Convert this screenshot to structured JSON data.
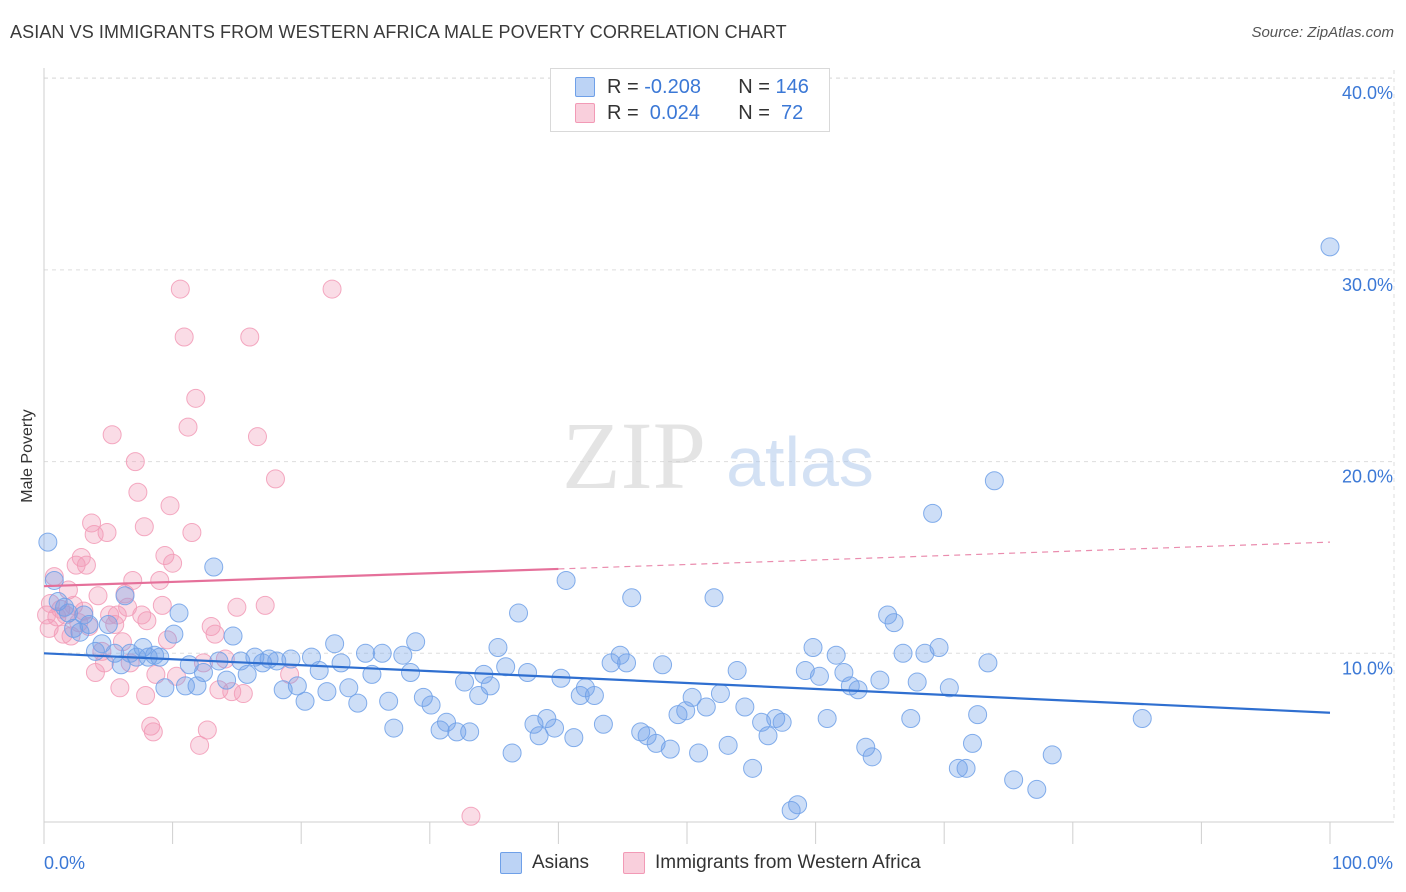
{
  "title": "ASIAN VS IMMIGRANTS FROM WESTERN AFRICA MALE POVERTY CORRELATION CHART",
  "source": "Source: ZipAtlas.com",
  "watermark": {
    "zip": "ZIP",
    "atlas": "atlas"
  },
  "legend": {
    "rows": [
      {
        "r_label": "R = ",
        "r_value": "-0.208",
        "n_label": "N = ",
        "n_value": "146"
      },
      {
        "r_label": "R = ",
        "r_value": " 0.024",
        "n_label": "N = ",
        "n_value": " 72"
      }
    ]
  },
  "colors": {
    "asians": "#6fa0e8",
    "asians_line": "#2f6fd0",
    "immigrants": "#f29ab6",
    "immigrants_line": "#e5709a",
    "tick_label": "#3b78d6",
    "grid": "#dddddd"
  },
  "chart_data": {
    "type": "scatter",
    "title": "ASIAN VS IMMIGRANTS FROM WESTERN AFRICA MALE POVERTY CORRELATION CHART",
    "xlabel": "",
    "ylabel": "Male Poverty",
    "xlim": [
      0,
      100
    ],
    "ylim": [
      0,
      42
    ],
    "x_tick_labels": [
      "0.0%",
      "100.0%"
    ],
    "y_ticks": [
      10,
      20,
      30,
      40
    ],
    "y_tick_labels": [
      "10.0%",
      "20.0%",
      "30.0%",
      "40.0%"
    ],
    "grid": true,
    "legend_position": "bottom",
    "series": [
      {
        "name": "Asians",
        "color": "#6fa0e8",
        "trend": {
          "x": [
            0,
            100
          ],
          "y": [
            10.0,
            6.9
          ]
        },
        "points": [
          [
            0.3,
            15.8
          ],
          [
            0.8,
            13.8
          ],
          [
            1.1,
            12.7
          ],
          [
            1.6,
            12.4
          ],
          [
            1.9,
            12.1
          ],
          [
            2.3,
            11.3
          ],
          [
            2.8,
            11.1
          ],
          [
            3.1,
            12.0
          ],
          [
            3.5,
            11.5
          ],
          [
            4.0,
            10.1
          ],
          [
            4.5,
            10.5
          ],
          [
            5.0,
            11.5
          ],
          [
            5.5,
            10.0
          ],
          [
            6.0,
            9.4
          ],
          [
            6.3,
            13.0
          ],
          [
            6.7,
            10.0
          ],
          [
            7.2,
            9.8
          ],
          [
            7.7,
            10.3
          ],
          [
            8.1,
            9.8
          ],
          [
            8.6,
            9.9
          ],
          [
            9.0,
            9.8
          ],
          [
            9.4,
            8.2
          ],
          [
            10.1,
            11.0
          ],
          [
            10.5,
            12.1
          ],
          [
            11.0,
            8.3
          ],
          [
            11.3,
            9.4
          ],
          [
            11.9,
            8.3
          ],
          [
            12.4,
            9.0
          ],
          [
            13.2,
            14.5
          ],
          [
            13.6,
            9.6
          ],
          [
            14.2,
            8.6
          ],
          [
            14.7,
            10.9
          ],
          [
            15.3,
            9.6
          ],
          [
            15.8,
            8.9
          ],
          [
            16.4,
            9.8
          ],
          [
            17.0,
            9.5
          ],
          [
            17.5,
            9.7
          ],
          [
            18.1,
            9.6
          ],
          [
            18.6,
            8.1
          ],
          [
            19.2,
            9.7
          ],
          [
            19.7,
            8.3
          ],
          [
            20.3,
            7.5
          ],
          [
            20.8,
            9.8
          ],
          [
            21.4,
            9.1
          ],
          [
            22.0,
            8.0
          ],
          [
            22.6,
            10.5
          ],
          [
            23.1,
            9.5
          ],
          [
            23.7,
            8.2
          ],
          [
            24.4,
            7.4
          ],
          [
            25.0,
            10.0
          ],
          [
            25.5,
            8.9
          ],
          [
            26.3,
            10.0
          ],
          [
            26.8,
            7.5
          ],
          [
            27.2,
            6.1
          ],
          [
            27.9,
            9.9
          ],
          [
            28.5,
            9.0
          ],
          [
            28.9,
            10.6
          ],
          [
            29.5,
            7.7
          ],
          [
            30.1,
            7.3
          ],
          [
            30.8,
            6.0
          ],
          [
            31.3,
            6.4
          ],
          [
            32.1,
            5.9
          ],
          [
            32.7,
            8.5
          ],
          [
            33.1,
            5.9
          ],
          [
            33.8,
            7.8
          ],
          [
            34.2,
            8.9
          ],
          [
            34.7,
            8.3
          ],
          [
            35.3,
            10.3
          ],
          [
            35.9,
            9.3
          ],
          [
            36.4,
            4.8
          ],
          [
            36.9,
            12.1
          ],
          [
            37.6,
            9.0
          ],
          [
            38.1,
            6.3
          ],
          [
            38.5,
            5.7
          ],
          [
            39.1,
            6.6
          ],
          [
            39.7,
            6.1
          ],
          [
            40.2,
            8.7
          ],
          [
            40.6,
            13.8
          ],
          [
            41.2,
            5.6
          ],
          [
            41.7,
            7.8
          ],
          [
            42.1,
            8.2
          ],
          [
            42.8,
            7.8
          ],
          [
            43.5,
            6.3
          ],
          [
            44.1,
            9.5
          ],
          [
            44.8,
            9.9
          ],
          [
            45.3,
            9.5
          ],
          [
            45.7,
            12.9
          ],
          [
            46.4,
            5.9
          ],
          [
            46.9,
            5.7
          ],
          [
            47.6,
            5.3
          ],
          [
            48.1,
            9.4
          ],
          [
            48.7,
            5.0
          ],
          [
            49.3,
            6.8
          ],
          [
            49.9,
            7.0
          ],
          [
            50.4,
            7.7
          ],
          [
            50.9,
            4.8
          ],
          [
            51.5,
            7.2
          ],
          [
            52.1,
            12.9
          ],
          [
            52.6,
            7.9
          ],
          [
            53.2,
            5.2
          ],
          [
            53.9,
            9.1
          ],
          [
            54.5,
            7.2
          ],
          [
            55.1,
            4.0
          ],
          [
            55.8,
            6.4
          ],
          [
            56.3,
            5.7
          ],
          [
            56.9,
            6.6
          ],
          [
            57.4,
            6.4
          ],
          [
            58.1,
            1.8
          ],
          [
            58.6,
            2.1
          ],
          [
            59.2,
            9.1
          ],
          [
            59.8,
            10.3
          ],
          [
            60.3,
            8.8
          ],
          [
            60.9,
            6.6
          ],
          [
            61.6,
            9.9
          ],
          [
            62.2,
            9.0
          ],
          [
            62.7,
            8.3
          ],
          [
            63.3,
            8.1
          ],
          [
            63.9,
            5.1
          ],
          [
            64.4,
            4.6
          ],
          [
            65.0,
            8.6
          ],
          [
            65.6,
            12.0
          ],
          [
            66.1,
            11.6
          ],
          [
            66.8,
            10.0
          ],
          [
            67.4,
            6.6
          ],
          [
            67.9,
            8.5
          ],
          [
            68.5,
            10.0
          ],
          [
            69.1,
            17.3
          ],
          [
            69.6,
            10.3
          ],
          [
            70.4,
            8.2
          ],
          [
            71.1,
            4.0
          ],
          [
            71.7,
            4.0
          ],
          [
            72.2,
            5.3
          ],
          [
            72.6,
            6.8
          ],
          [
            73.4,
            9.5
          ],
          [
            73.9,
            19.0
          ],
          [
            75.4,
            3.4
          ],
          [
            77.2,
            2.9
          ],
          [
            78.4,
            4.7
          ],
          [
            85.4,
            6.6
          ],
          [
            100.0,
            31.2
          ]
        ]
      },
      {
        "name": "Immigrants from Western Africa",
        "color": "#f29ab6",
        "trend": {
          "x": [
            0,
            40
          ],
          "y": [
            13.5,
            14.4
          ]
        },
        "trend_dashed": {
          "x": [
            40,
            100
          ],
          "y": [
            14.4,
            15.8
          ]
        },
        "points": [
          [
            0.2,
            12.0
          ],
          [
            0.4,
            11.3
          ],
          [
            0.5,
            12.6
          ],
          [
            0.8,
            14.0
          ],
          [
            1.0,
            11.9
          ],
          [
            1.3,
            12.3
          ],
          [
            1.5,
            11.0
          ],
          [
            1.7,
            12.0
          ],
          [
            1.9,
            13.3
          ],
          [
            2.1,
            10.9
          ],
          [
            2.3,
            12.5
          ],
          [
            2.5,
            14.6
          ],
          [
            2.7,
            11.6
          ],
          [
            2.9,
            15.0
          ],
          [
            3.1,
            12.2
          ],
          [
            3.3,
            14.6
          ],
          [
            3.5,
            11.4
          ],
          [
            3.7,
            16.8
          ],
          [
            3.9,
            16.2
          ],
          [
            4.0,
            9.0
          ],
          [
            4.2,
            13.0
          ],
          [
            4.5,
            10.1
          ],
          [
            4.7,
            9.5
          ],
          [
            4.9,
            16.3
          ],
          [
            5.1,
            12.0
          ],
          [
            5.3,
            21.4
          ],
          [
            5.5,
            11.5
          ],
          [
            5.7,
            12.0
          ],
          [
            5.9,
            8.2
          ],
          [
            6.1,
            10.6
          ],
          [
            6.3,
            13.1
          ],
          [
            6.5,
            12.4
          ],
          [
            6.7,
            9.5
          ],
          [
            6.9,
            13.8
          ],
          [
            7.1,
            20.0
          ],
          [
            7.3,
            18.4
          ],
          [
            7.6,
            12.0
          ],
          [
            7.8,
            16.6
          ],
          [
            8.0,
            11.7
          ],
          [
            8.3,
            6.2
          ],
          [
            8.5,
            5.9
          ],
          [
            8.7,
            8.9
          ],
          [
            9.0,
            13.8
          ],
          [
            9.2,
            12.5
          ],
          [
            9.4,
            15.1
          ],
          [
            9.6,
            10.7
          ],
          [
            9.8,
            17.7
          ],
          [
            10.0,
            14.7
          ],
          [
            10.3,
            8.8
          ],
          [
            10.6,
            29.0
          ],
          [
            10.9,
            26.5
          ],
          [
            11.2,
            21.8
          ],
          [
            11.5,
            16.3
          ],
          [
            11.8,
            23.3
          ],
          [
            12.1,
            5.2
          ],
          [
            12.4,
            9.5
          ],
          [
            12.7,
            6.0
          ],
          [
            13.0,
            11.4
          ],
          [
            13.3,
            11.0
          ],
          [
            13.6,
            8.1
          ],
          [
            14.1,
            9.7
          ],
          [
            14.6,
            8.0
          ],
          [
            15.0,
            12.4
          ],
          [
            15.5,
            7.9
          ],
          [
            16.0,
            26.5
          ],
          [
            16.6,
            21.3
          ],
          [
            17.2,
            12.5
          ],
          [
            18.0,
            19.1
          ],
          [
            19.1,
            8.9
          ],
          [
            22.4,
            29.0
          ],
          [
            33.2,
            1.5
          ],
          [
            7.9,
            7.8
          ]
        ]
      }
    ]
  }
}
